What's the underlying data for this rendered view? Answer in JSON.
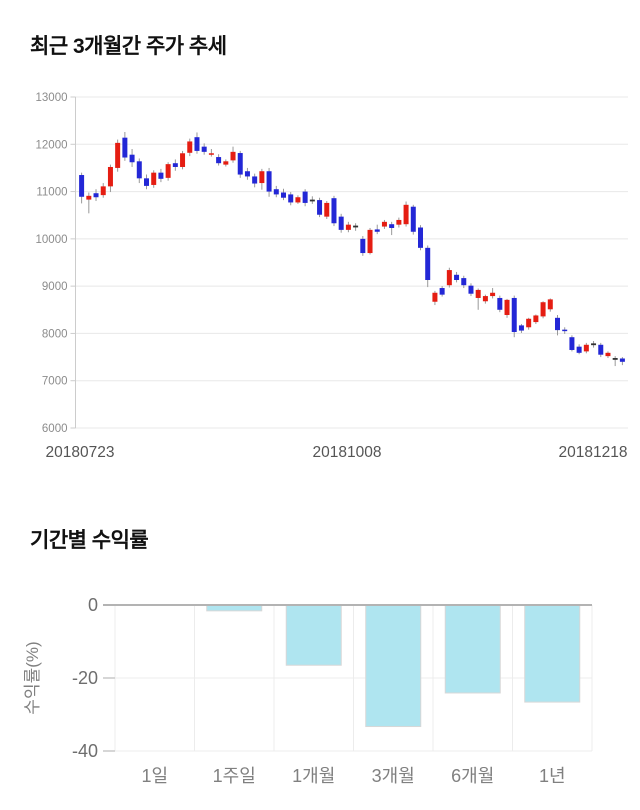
{
  "chart_data": [
    {
      "type": "candlestick",
      "title": "최근 3개월간 주가 추세",
      "x_tick_labels": [
        "20180723",
        "20181008",
        "20181218"
      ],
      "y_ticks": [
        13000,
        12000,
        11000,
        10000,
        9000,
        8000,
        7000,
        6000
      ],
      "ylim": [
        6000,
        13000
      ],
      "grid": true,
      "colors": {
        "up": "#e51d12",
        "down": "#2327d6",
        "doji": "#333333",
        "wick": "#999999",
        "grid": "#e8e8e8",
        "axis": "#cccccc",
        "y_tick_text": "#8c8c8c",
        "x_tick_text": "#555555"
      },
      "candles_ohlc": [
        [
          11350,
          11400,
          10750,
          10890
        ],
        [
          10830,
          10980,
          10540,
          10910
        ],
        [
          10965,
          11050,
          10800,
          10880
        ],
        [
          10925,
          11180,
          10870,
          11110
        ],
        [
          11110,
          11570,
          10990,
          11520
        ],
        [
          11500,
          12100,
          11420,
          12030
        ],
        [
          12140,
          12260,
          11650,
          11720
        ],
        [
          11780,
          11900,
          11520,
          11620
        ],
        [
          11640,
          11700,
          11180,
          11280
        ],
        [
          11280,
          11360,
          11050,
          11120
        ],
        [
          11140,
          11450,
          11080,
          11400
        ],
        [
          11400,
          11480,
          11200,
          11270
        ],
        [
          11290,
          11620,
          11230,
          11580
        ],
        [
          11600,
          11680,
          11440,
          11520
        ],
        [
          11520,
          11860,
          11470,
          11810
        ],
        [
          11820,
          12120,
          11750,
          12060
        ],
        [
          12150,
          12250,
          11800,
          11860
        ],
        [
          11950,
          12020,
          11780,
          11840
        ],
        [
          11780,
          11900,
          11740,
          11810
        ],
        [
          11730,
          11790,
          11550,
          11600
        ],
        [
          11570,
          11680,
          11530,
          11640
        ],
        [
          11660,
          11950,
          11610,
          11840
        ],
        [
          11815,
          11860,
          11290,
          11360
        ],
        [
          11430,
          11500,
          11250,
          11320
        ],
        [
          11320,
          11380,
          11090,
          11170
        ],
        [
          11180,
          11480,
          11040,
          11430
        ],
        [
          11430,
          11500,
          10890,
          11000
        ],
        [
          11050,
          11120,
          10880,
          10940
        ],
        [
          10980,
          11060,
          10820,
          10870
        ],
        [
          10940,
          10990,
          10710,
          10770
        ],
        [
          10770,
          10920,
          10740,
          10880
        ],
        [
          11000,
          11050,
          10690,
          10760
        ],
        [
          10830,
          10900,
          10740,
          10830
        ],
        [
          10820,
          10870,
          10460,
          10510
        ],
        [
          10470,
          10800,
          10420,
          10760
        ],
        [
          10860,
          10910,
          10270,
          10330
        ],
        [
          10470,
          10530,
          10130,
          10190
        ],
        [
          10190,
          10360,
          10140,
          10300
        ],
        [
          10280,
          10330,
          10170,
          10280
        ],
        [
          10000,
          10060,
          9640,
          9700
        ],
        [
          9700,
          10230,
          9670,
          10190
        ],
        [
          10200,
          10300,
          10100,
          10150
        ],
        [
          10260,
          10400,
          10210,
          10360
        ],
        [
          10310,
          10360,
          10080,
          10230
        ],
        [
          10300,
          10450,
          10240,
          10400
        ],
        [
          10310,
          10790,
          10260,
          10720
        ],
        [
          10680,
          10720,
          10090,
          10150
        ],
        [
          10240,
          10290,
          9760,
          9810
        ],
        [
          9810,
          9860,
          8980,
          9130
        ],
        [
          8670,
          8900,
          8600,
          8860
        ],
        [
          8960,
          9000,
          8780,
          8820
        ],
        [
          9020,
          9390,
          8970,
          9340
        ],
        [
          9240,
          9300,
          9080,
          9130
        ],
        [
          9170,
          9220,
          8960,
          9020
        ],
        [
          9010,
          9060,
          8790,
          8840
        ],
        [
          8750,
          8950,
          8500,
          8920
        ],
        [
          8680,
          8820,
          8630,
          8790
        ],
        [
          8790,
          8960,
          8740,
          8860
        ],
        [
          8750,
          8800,
          8450,
          8500
        ],
        [
          8390,
          8730,
          8330,
          8710
        ],
        [
          8750,
          8800,
          7920,
          8030
        ],
        [
          8170,
          8200,
          8010,
          8060
        ],
        [
          8130,
          8330,
          8080,
          8310
        ],
        [
          8240,
          8400,
          8200,
          8380
        ],
        [
          8360,
          8680,
          8320,
          8660
        ],
        [
          8510,
          8740,
          8460,
          8720
        ],
        [
          8330,
          8390,
          7960,
          8070
        ],
        [
          8080,
          8130,
          7990,
          8050
        ],
        [
          7920,
          7960,
          7620,
          7650
        ],
        [
          7720,
          7770,
          7560,
          7590
        ],
        [
          7620,
          7800,
          7580,
          7760
        ],
        [
          7790,
          7840,
          7700,
          7790
        ],
        [
          7760,
          7800,
          7500,
          7550
        ],
        [
          7520,
          7620,
          7480,
          7590
        ],
        [
          7480,
          7520,
          7310,
          7460
        ],
        [
          7470,
          7500,
          7330,
          7400
        ]
      ]
    },
    {
      "type": "bar",
      "title": "기간별 수익률",
      "categories": [
        "1일",
        "1주일",
        "1개월",
        "3개월",
        "6개월",
        "1년"
      ],
      "values": [
        0,
        -1.6,
        -16.5,
        -33.3,
        -24.1,
        -26.6
      ],
      "ylabel": "수익률(%)",
      "y_ticks": [
        0,
        -20,
        -40
      ],
      "ylim": [
        -40,
        0
      ],
      "grid": true,
      "legend": "none",
      "colors": {
        "bar_fill": "#afe5f0",
        "bar_border": "#d7d7d7",
        "zero_line": "#b3b3b3",
        "grid": "#ececec",
        "tick": "#c9c9c9",
        "y_tick_text": "#6e6e6e",
        "category_text": "#808080",
        "ylabel_text": "#808080"
      }
    }
  ]
}
